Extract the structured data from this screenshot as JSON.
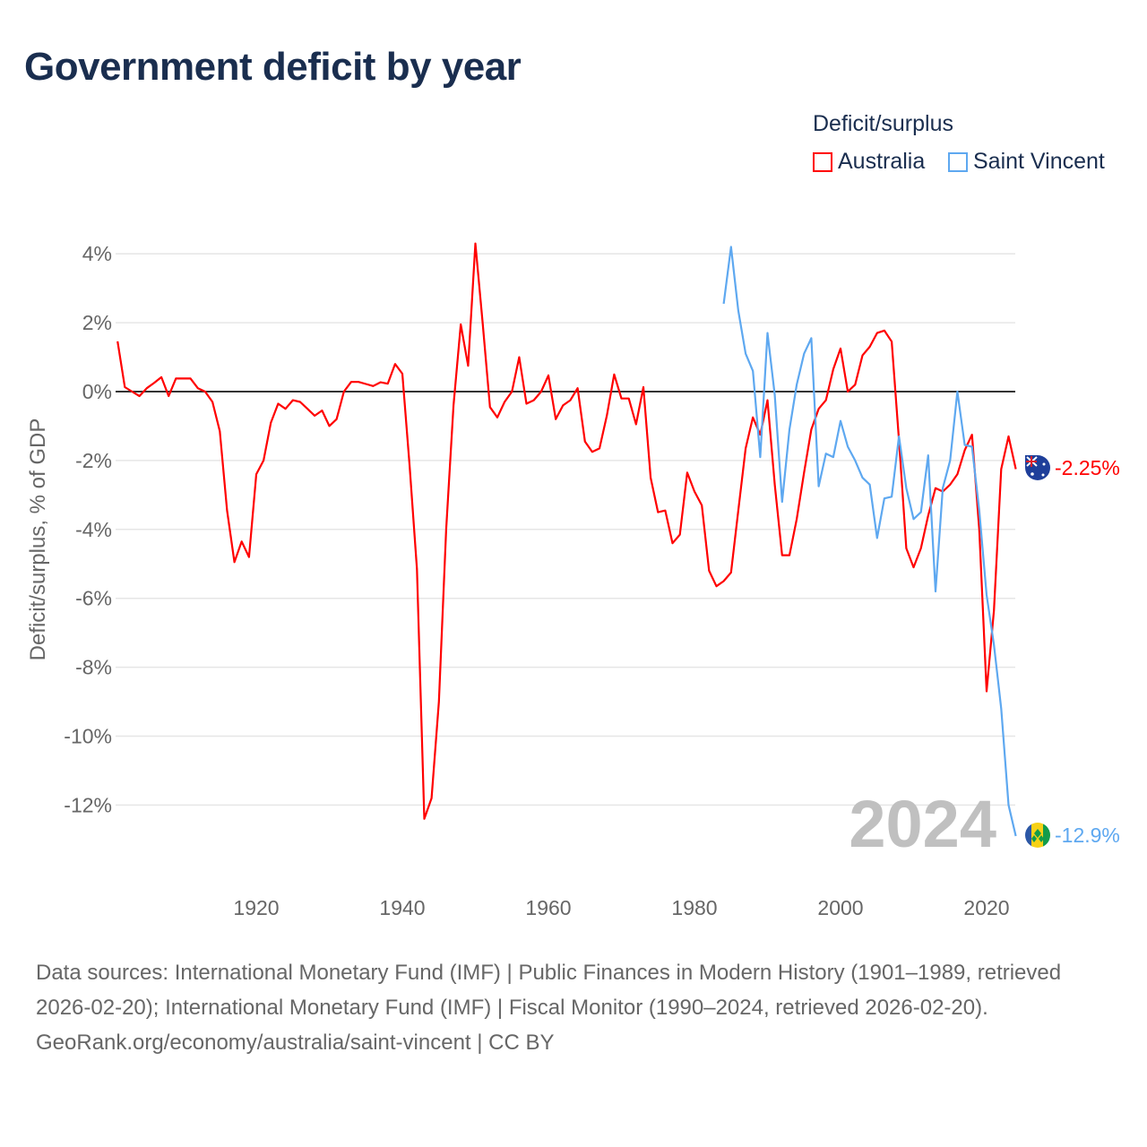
{
  "title": "Government deficit by year",
  "legend": {
    "title": "Deficit/surplus",
    "items": [
      {
        "label": "Australia",
        "color": "#ff0000"
      },
      {
        "label": "Saint Vincent",
        "color": "#5ea8f0"
      }
    ]
  },
  "year_watermark": "2024",
  "end_labels": {
    "australia": "-2.25%",
    "saint_vincent": "-12.9%"
  },
  "footer": {
    "sources": "Data sources: International Monetary Fund (IMF) | Public Finances in Modern History (1901–1989, retrieved 2026-02-20); International Monetary Fund (IMF) | Fiscal Monitor (1990–2024, retrieved 2026-02-20).",
    "credit": "GeoRank.org/economy/australia/saint-vincent | CC BY"
  },
  "chart_data": {
    "type": "line",
    "title": "Government deficit by year",
    "ylabel": "Deficit/surplus, % of GDP",
    "xlabel": "",
    "xlim": [
      1901,
      2024
    ],
    "ylim": [
      -13,
      4.3
    ],
    "x_ticks": [
      1920,
      1940,
      1960,
      1980,
      2000,
      2020
    ],
    "y_ticks": [
      4,
      2,
      0,
      -2,
      -4,
      -6,
      -8,
      -10,
      -12
    ],
    "y_tick_labels": [
      "4%",
      "2%",
      "0%",
      "-2%",
      "-4%",
      "-6%",
      "-8%",
      "-10%",
      "-12%"
    ],
    "grid": true,
    "legend_position": "top-right",
    "series": [
      {
        "name": "Australia",
        "color": "#ff0000",
        "start_year": 1901,
        "values": [
          1.46,
          0.13,
          0.0,
          -0.13,
          0.1,
          0.25,
          0.42,
          -0.13,
          0.38,
          0.38,
          0.38,
          0.1,
          0.0,
          -0.3,
          -1.15,
          -3.45,
          -4.95,
          -4.35,
          -4.8,
          -2.4,
          -2.0,
          -0.9,
          -0.35,
          -0.5,
          -0.25,
          -0.3,
          -0.5,
          -0.7,
          -0.55,
          -1.0,
          -0.8,
          0.0,
          0.28,
          0.28,
          0.22,
          0.16,
          0.27,
          0.23,
          0.8,
          0.52,
          -2.15,
          -5.15,
          -12.4,
          -11.8,
          -9.0,
          -4.0,
          -0.4,
          1.95,
          0.75,
          4.3,
          2.0,
          -0.45,
          -0.75,
          -0.3,
          0.0,
          1.0,
          -0.35,
          -0.25,
          0.0,
          0.47,
          -0.8,
          -0.4,
          -0.25,
          0.1,
          -1.45,
          -1.75,
          -1.65,
          -0.7,
          0.5,
          -0.2,
          -0.2,
          -0.95,
          0.13,
          -2.5,
          -3.5,
          -3.45,
          -4.4,
          -4.15,
          -2.35,
          -2.9,
          -3.3,
          -5.2,
          -5.65,
          -5.5,
          -5.25,
          -3.45,
          -1.65,
          -0.75,
          -1.25,
          -0.25,
          -2.7,
          -4.75,
          -4.75,
          -3.7,
          -2.35,
          -1.1,
          -0.5,
          -0.25,
          0.65,
          1.25,
          0.0,
          0.2,
          1.05,
          1.3,
          1.7,
          1.77,
          1.45,
          -1.4,
          -4.55,
          -5.1,
          -4.55,
          -3.6,
          -2.8,
          -2.9,
          -2.7,
          -2.4,
          -1.7,
          -1.25,
          -4.0,
          -8.7,
          -6.35,
          -2.25,
          -1.3,
          -2.25
        ]
      },
      {
        "name": "Saint Vincent",
        "color": "#5ea8f0",
        "start_year": 1984,
        "values": [
          2.55,
          4.2,
          2.35,
          1.1,
          0.6,
          -1.9,
          1.7,
          -0.1,
          -3.2,
          -1.1,
          0.2,
          1.1,
          1.55,
          -2.75,
          -1.8,
          -1.9,
          -0.85,
          -1.6,
          -2.0,
          -2.5,
          -2.7,
          -4.25,
          -3.1,
          -3.05,
          -1.3,
          -2.8,
          -3.7,
          -3.5,
          -1.85,
          -5.8,
          -2.8,
          -2.0,
          0.0,
          -1.55,
          -1.6,
          -3.45,
          -5.9,
          -7.35,
          -9.2,
          -12.0,
          -12.9
        ]
      }
    ]
  }
}
